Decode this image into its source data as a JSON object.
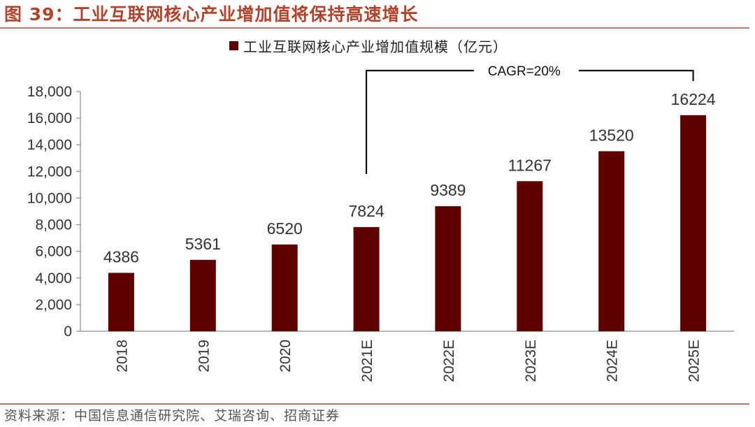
{
  "figure": {
    "title": "图 39：工业互联网核心产业增加值将保持高速增长",
    "source": "资料来源：中国信息通信研究院、艾瑞咨询、招商证券"
  },
  "chart_data": {
    "type": "bar",
    "title": "",
    "xlabel": "",
    "ylabel": "",
    "categories": [
      "2018",
      "2019",
      "2020",
      "2021E",
      "2022E",
      "2023E",
      "2024E",
      "2025E"
    ],
    "series": [
      {
        "name": "工业互联网核心产业增加值规模（亿元）",
        "values": [
          4386,
          5361,
          6520,
          7824,
          9389,
          11267,
          13520,
          16224
        ],
        "color": "#5e0000"
      }
    ],
    "ylim": [
      0,
      18000
    ],
    "yticks": [
      0,
      2000,
      4000,
      6000,
      8000,
      10000,
      12000,
      14000,
      16000,
      18000
    ],
    "ytick_labels": [
      "0",
      "2,000",
      "4,000",
      "6,000",
      "8,000",
      "10,000",
      "12,000",
      "14,000",
      "16,000",
      "18,000"
    ],
    "data_labels": [
      "4386",
      "5361",
      "6520",
      "7824",
      "9389",
      "11267",
      "13520",
      "16224"
    ],
    "legend_position": "top-center",
    "grid": false,
    "annotation": {
      "text": "CAGR=20%",
      "from_category": "2021E",
      "to_category": "2025E"
    }
  }
}
